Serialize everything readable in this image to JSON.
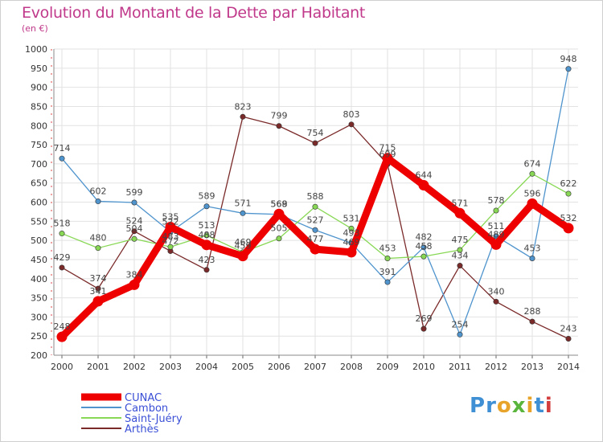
{
  "title": "Evolution du Montant de la Dette par Habitant",
  "unit_label": "(en €)",
  "logo": {
    "letters": [
      "P",
      "r",
      "o",
      "x",
      "i",
      "t",
      "i"
    ],
    "colors": [
      "#3f8fd4",
      "#3f8fd4",
      "#e8a42a",
      "#5ab53c",
      "#e8a42a",
      "#3f8fd4",
      "#d43d3d"
    ]
  },
  "chart_data": {
    "type": "line",
    "title": "Evolution du Montant de la Dette par Habitant",
    "ylabel": "(en €)",
    "xlabel": "",
    "ylim": [
      200,
      1000
    ],
    "yticks": [
      "200",
      "250",
      "300",
      "350",
      "400",
      "450",
      "500",
      "550",
      "600",
      "650",
      "700",
      "750",
      "800",
      "850",
      "900",
      "950",
      "1000"
    ],
    "x": [
      "2000",
      "2001",
      "2002",
      "2003",
      "2004",
      "2005",
      "2006",
      "2007",
      "2008",
      "2009",
      "2010",
      "2011",
      "2012",
      "2013",
      "2014"
    ],
    "grid": true,
    "legend_position": "bottom-left",
    "series": [
      {
        "name": "CUNAC",
        "color": "#ee0000",
        "values": [
          248,
          341,
          384,
          535,
          488,
          459,
          569,
          477,
          469,
          715,
          644,
          571,
          489,
          596,
          532
        ]
      },
      {
        "name": "Cambon",
        "color": "#4f94cd",
        "values": [
          714,
          602,
          599,
          522,
          589,
          571,
          568,
          527,
          493,
          391,
          482,
          254,
          511,
          453,
          948
        ]
      },
      {
        "name": "Saint-Juéry",
        "color": "#88d855",
        "values": [
          518,
          480,
          504,
          483,
          513,
          469,
          505,
          588,
          531,
          453,
          458,
          475,
          578,
          674,
          622
        ]
      },
      {
        "name": "Arthès",
        "color": "#7b2a2a",
        "values": [
          429,
          374,
          524,
          472,
          423,
          823,
          799,
          754,
          803,
          699,
          269,
          434,
          340,
          288,
          243
        ]
      }
    ]
  }
}
